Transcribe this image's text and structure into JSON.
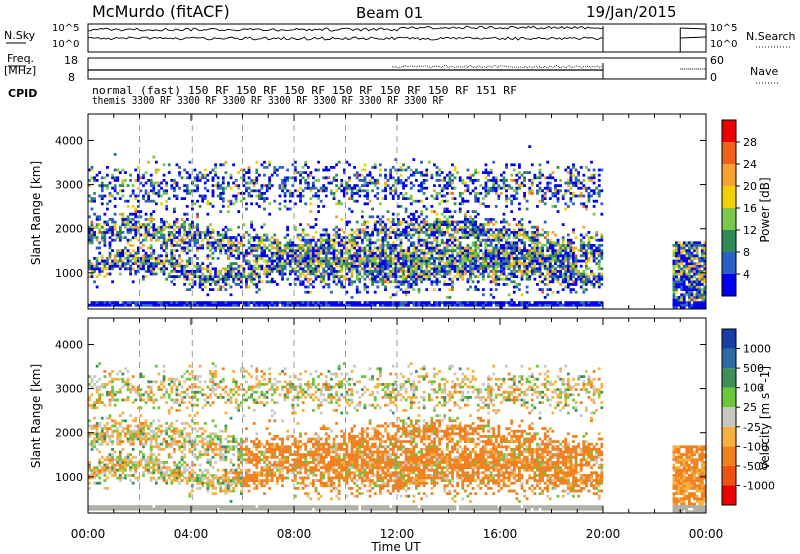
{
  "header": {
    "station": "McMurdo (fitACF)",
    "beam": "Beam 01",
    "date": "19/Jan/2015"
  },
  "top_panels": {
    "nsky_label": "N.Sky",
    "nsky_ticks": [
      "10^5",
      "10^0"
    ],
    "nsearch_label": "N.Search",
    "nsearch_ticks": [
      "10^5",
      "10^0"
    ],
    "freq_label": "Freq.",
    "freq_unit": "[MHz]",
    "freq_ticks": [
      "18",
      "8"
    ],
    "nave_label": "Nave",
    "nave_ticks": [
      "60",
      "0"
    ],
    "cpid_label": "CPID",
    "cpid_row1": "normal (fast) 150 RF 150 RF 150 RF 150 RF 150 RF 150 RF 151 RF",
    "cpid_row2": "themis 3300 RF 3300 RF 3300 RF 3300 RF 3300 RF 3300 RF 3300 RF"
  },
  "chart_data": [
    {
      "type": "heatmap",
      "name": "power",
      "ylabel": "Slant Range [km]",
      "ylim": [
        180,
        4600
      ],
      "yticks": [
        1000,
        2000,
        3000,
        4000
      ],
      "xlim": [
        0,
        24
      ],
      "colorbar": {
        "label": "Power [dB]",
        "ticks": [
          "4",
          "8",
          "12",
          "16",
          "20",
          "24",
          "28"
        ],
        "colors": [
          "#0000ee",
          "#2a5fc8",
          "#2e8b57",
          "#7cc84a",
          "#f0d000",
          "#f5a030",
          "#f06018",
          "#ee0000"
        ]
      }
    },
    {
      "type": "heatmap",
      "name": "velocity",
      "ylabel": "Slant Range [km]",
      "ylim": [
        180,
        4600
      ],
      "yticks": [
        1000,
        2000,
        3000,
        4000
      ],
      "xlim": [
        0,
        24
      ],
      "xlabel": "Time UT",
      "xticks": [
        "00:00",
        "04:00",
        "08:00",
        "12:00",
        "16:00",
        "20:00",
        "00:00"
      ],
      "colorbar": {
        "label": "Velocity [m s^-1]",
        "ticks": [
          "1000",
          "500",
          "100",
          "25",
          "-25",
          "-100",
          "-500",
          "-1000"
        ],
        "colors": [
          "#1a3ea8",
          "#2a6aa0",
          "#3f8f5a",
          "#6cc63a",
          "#c8c8c0",
          "#f5b040",
          "#f08020",
          "#f05010",
          "#ee0000"
        ]
      }
    }
  ],
  "colors": {
    "scatter_ground": "#b0b0a8"
  }
}
